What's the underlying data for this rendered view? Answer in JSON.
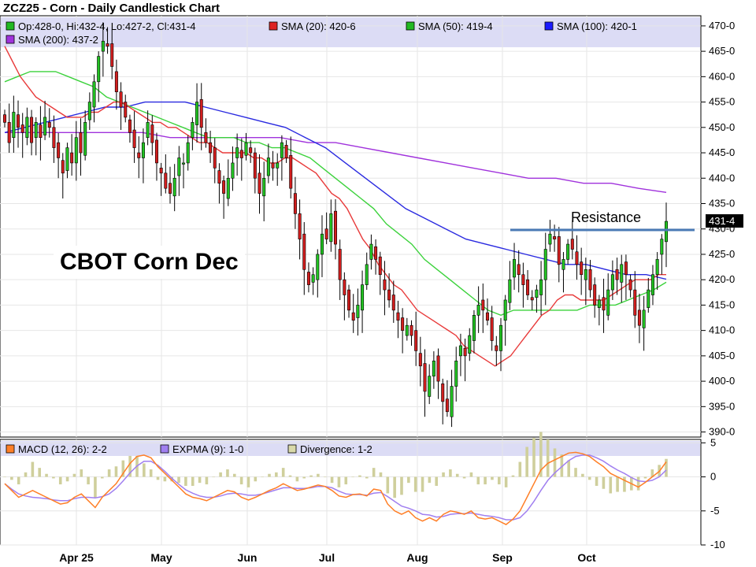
{
  "chart_data": {
    "type": "candlestick",
    "title": "ZCZ25 - Corn - Daily Candlestick Chart",
    "overlay_label": "CBOT Corn Dec",
    "annotation": "Resistance",
    "last_price_label": "431-4",
    "x_labels": [
      "Apr 25",
      "May",
      "Jun",
      "Jul",
      "Aug",
      "Sep",
      "Oct"
    ],
    "price_panel": {
      "ylim": [
        389,
        472
      ],
      "ticks": [
        "470-0",
        "465-0",
        "460-0",
        "455-0",
        "450-0",
        "445-0",
        "440-0",
        "435-0",
        "430-0",
        "425-0",
        "420-0",
        "415-0",
        "410-0",
        "405-0",
        "400-0",
        "395-0",
        "390-0"
      ],
      "legend": [
        {
          "text": "Op:428-0, Hi:432-4, Lo:427-2, Cl:431-4",
          "color": "#22b922"
        },
        {
          "text": "SMA (20): 420-6",
          "color": "#dd2222"
        },
        {
          "text": "SMA (50): 419-4",
          "color": "#22b922"
        },
        {
          "text": "SMA (100): 420-1",
          "color": "#1a1aff"
        },
        {
          "text": "SMA (200): 437-2",
          "color": "#a032dc"
        }
      ],
      "resistance_level": 429.8,
      "closes": [
        451,
        447,
        453,
        450,
        449,
        452,
        447,
        451,
        448,
        452,
        450,
        446,
        444,
        441,
        446,
        443,
        448,
        445,
        451,
        455,
        459,
        464,
        467,
        466,
        462,
        457,
        454,
        452,
        449,
        446,
        444,
        447,
        451,
        447,
        443,
        441,
        438,
        437,
        440,
        444,
        443,
        447,
        451,
        455,
        450,
        447,
        445,
        442,
        439,
        437,
        440,
        443,
        446,
        444,
        447,
        445,
        440,
        437,
        440,
        444,
        442,
        443,
        447,
        444,
        438,
        433,
        428,
        422,
        419,
        421,
        425,
        429,
        428,
        433,
        427,
        420,
        417,
        414,
        412,
        415,
        419,
        423,
        427,
        424,
        421,
        418,
        416,
        414,
        412,
        410,
        411,
        409,
        406,
        403,
        398,
        401,
        404,
        400,
        396,
        394,
        399,
        404,
        407,
        405,
        409,
        413,
        415,
        414,
        412,
        408,
        406,
        411,
        416,
        420,
        424,
        421,
        419,
        417,
        416,
        418,
        420,
        426,
        429,
        428,
        423,
        424,
        427,
        426,
        423,
        421,
        422,
        418,
        415,
        416,
        414,
        418,
        421,
        420,
        423,
        421,
        418,
        413,
        411,
        414,
        418,
        421,
        424,
        428,
        431.5
      ],
      "sma20": [
        466,
        463,
        460,
        458,
        456,
        455,
        454,
        453,
        452,
        452,
        452,
        453,
        453,
        454,
        455,
        455,
        454,
        453,
        452,
        451,
        451,
        450,
        450,
        449,
        448,
        447,
        447,
        446,
        445,
        445,
        445,
        445,
        444,
        444,
        443,
        443,
        444,
        444,
        443,
        442,
        441,
        439,
        437,
        436,
        434,
        431,
        428,
        426,
        423,
        421,
        419,
        418,
        416,
        414,
        413,
        412,
        411,
        410,
        409,
        407,
        406,
        405,
        404,
        403,
        404,
        405,
        407,
        409,
        411,
        413,
        414,
        416,
        417,
        417,
        416,
        416,
        416,
        416,
        417,
        418,
        419,
        420,
        420,
        420,
        421,
        421
      ],
      "sma50": [
        459,
        460,
        461,
        461,
        461,
        460,
        459,
        458,
        456,
        455,
        454,
        453,
        452,
        451,
        450,
        449,
        448,
        448,
        448,
        447,
        447,
        446,
        446,
        445,
        444,
        442,
        440,
        438,
        436,
        434,
        431,
        429,
        427,
        424,
        422,
        420,
        418,
        416,
        414,
        413,
        414,
        414,
        414,
        414,
        414,
        414,
        415,
        415,
        415,
        416,
        417,
        418,
        419.5
      ],
      "sma100": [
        449,
        450,
        451,
        452,
        453,
        454,
        454,
        455,
        455,
        455,
        454,
        453,
        452,
        451,
        450,
        448,
        446,
        443,
        440,
        437,
        434,
        432,
        430,
        428,
        427,
        426,
        425,
        424,
        423,
        423,
        422,
        421,
        421,
        420.1
      ],
      "sma200": [
        449,
        449,
        449,
        449,
        449,
        449,
        448,
        448,
        448,
        448,
        448,
        447,
        447,
        446,
        445,
        444,
        443,
        442,
        441,
        440,
        440,
        439,
        439,
        438,
        437.2
      ]
    },
    "macd_panel": {
      "ylim": [
        -10,
        5.5
      ],
      "ticks": [
        "5",
        "0",
        "-5",
        "-10"
      ],
      "legend": [
        {
          "text": "MACD (12, 26): 2-2",
          "color": "#ff7f27"
        },
        {
          "text": "EXPMA (9): 1-0",
          "color": "#a07ff0"
        },
        {
          "text": "Divergence: 1-2",
          "color": "#d9d9aa"
        }
      ],
      "macd": [
        -1,
        -2,
        -3,
        -2.5,
        -2,
        -2.5,
        -3,
        -3.5,
        -4,
        -3.8,
        -3,
        -2.5,
        -3.5,
        -4.5,
        -3,
        -2,
        -1,
        0.5,
        2,
        3,
        3.2,
        2.8,
        1.5,
        0.5,
        -0.5,
        -1.5,
        -2.5,
        -3,
        -3.2,
        -3.5,
        -3,
        -2.5,
        -2,
        -2.2,
        -3,
        -3.4,
        -3,
        -2.5,
        -2,
        -1.6,
        -1,
        -1.5,
        -2,
        -1.8,
        -1.5,
        -1.2,
        -1.4,
        -2,
        -2.8,
        -3,
        -2.6,
        -2.5,
        -2.8,
        -1.8,
        -2,
        -4,
        -5,
        -5.5,
        -5,
        -6,
        -6.5,
        -6,
        -6.5,
        -5.5,
        -5,
        -5.2,
        -5.5,
        -5,
        -6,
        -6.2,
        -6,
        -6.5,
        -7,
        -6.2,
        -5,
        -3,
        -1,
        1,
        2,
        2.5,
        3,
        3.5,
        3.6,
        3.4,
        3,
        2.2,
        1.5,
        0.5,
        0,
        -0.5,
        -1,
        -1.5,
        -0.8,
        0,
        0.8,
        2.2
      ],
      "expma": [
        -1,
        -1.8,
        -2.5,
        -2.8,
        -3,
        -3.1,
        -3.2,
        -3.4,
        -3.5,
        -3.5,
        -3.2,
        -3,
        -3,
        -3.1,
        -2.9,
        -2.5,
        -1.7,
        -0.6,
        0.6,
        1.6,
        2.3,
        2.3,
        1.7,
        0.8,
        -0.2,
        -1.1,
        -1.9,
        -2.4,
        -2.8,
        -3,
        -3,
        -2.8,
        -2.5,
        -2.4,
        -2.5,
        -2.7,
        -2.7,
        -2.5,
        -2.2,
        -1.9,
        -1.6,
        -1.6,
        -1.7,
        -1.7,
        -1.6,
        -1.4,
        -1.4,
        -1.6,
        -2.1,
        -2.5,
        -2.6,
        -2.6,
        -2.7,
        -2.4,
        -2.3,
        -2.9,
        -3.6,
        -4.3,
        -4.6,
        -5,
        -5.5,
        -5.6,
        -5.9,
        -5.8,
        -5.5,
        -5.4,
        -5.4,
        -5.3,
        -5.5,
        -5.7,
        -5.8,
        -6,
        -6.3,
        -6.3,
        -6,
        -5,
        -3.6,
        -2,
        -0.5,
        0.6,
        1.5,
        2.4,
        3,
        3.2,
        3.2,
        2.8,
        2.3,
        1.6,
        1,
        0.5,
        -0.1,
        -0.6,
        -0.7,
        -0.5,
        0,
        1
      ]
    }
  }
}
